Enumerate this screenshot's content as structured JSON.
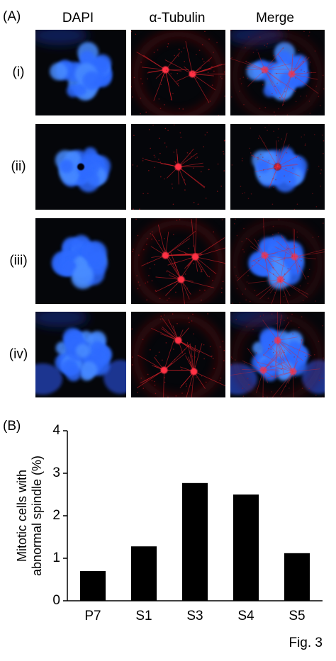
{
  "panel_a": {
    "label": "(A)",
    "columns": [
      "DAPI",
      "α-Tubulin",
      "Merge"
    ],
    "rows": [
      "(i)",
      "(ii)",
      "(iii)",
      "(iv)"
    ]
  },
  "panel_b": {
    "label": "(B)"
  },
  "chart_data": {
    "type": "bar",
    "y_label": [
      "Mitotic cells with",
      "abnormal spindle (%)"
    ],
    "categories": [
      "P7",
      "S1",
      "S3",
      "S4",
      "S5"
    ],
    "values": [
      0.7,
      1.28,
      2.77,
      2.5,
      1.12
    ],
    "color": "#000000",
    "ylim": [
      0,
      4
    ],
    "yticks": [
      0,
      1,
      2,
      3,
      4
    ]
  },
  "figure_label": "Fig. 3"
}
